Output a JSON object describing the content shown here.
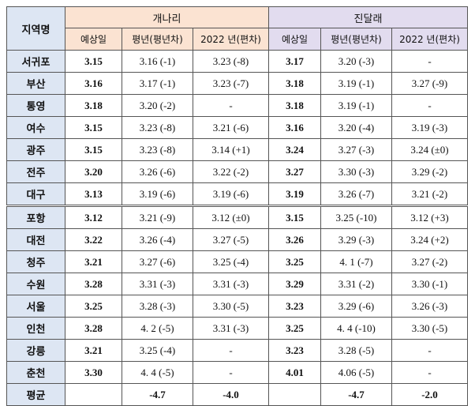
{
  "colors": {
    "region_bg": "#dde6f3",
    "forsythia_bg": "#fbe3d2",
    "azalea_bg": "#e2dcef",
    "border": "#555555"
  },
  "header": {
    "region_label": "지역명",
    "groups": [
      {
        "label": "개나리"
      },
      {
        "label": "진달래"
      }
    ],
    "subcolumns": [
      "예상일",
      "평년(평년차)",
      "2022 년(편차)",
      "예상일",
      "평년(평년차)",
      "2022 년(편차)"
    ]
  },
  "rows": [
    {
      "region": "서귀포",
      "f_pred": "3.15",
      "f_norm": "3.16 (-1)",
      "f_2022": "3.23 (-8)",
      "a_pred": "3.17",
      "a_norm": "3.20 (-3)",
      "a_2022": "-"
    },
    {
      "region": "부산",
      "f_pred": "3.16",
      "f_norm": "3.17 (-1)",
      "f_2022": "3.23 (-7)",
      "a_pred": "3.18",
      "a_norm": "3.19 (-1)",
      "a_2022": "3.27 (-9)"
    },
    {
      "region": "통영",
      "f_pred": "3.18",
      "f_norm": "3.20 (-2)",
      "f_2022": "-",
      "a_pred": "3.18",
      "a_norm": "3.19 (-1)",
      "a_2022": "-"
    },
    {
      "region": "여수",
      "f_pred": "3.15",
      "f_norm": "3.23 (-8)",
      "f_2022": "3.21 (-6)",
      "a_pred": "3.16",
      "a_norm": "3.20 (-4)",
      "a_2022": "3.19 (-3)"
    },
    {
      "region": "광주",
      "f_pred": "3.15",
      "f_norm": "3.23 (-8)",
      "f_2022": "3.14 (+1)",
      "a_pred": "3.24",
      "a_norm": "3.27 (-3)",
      "a_2022": "3.24 (±0)"
    },
    {
      "region": "전주",
      "f_pred": "3.20",
      "f_norm": "3.26 (-6)",
      "f_2022": "3.22 (-2)",
      "a_pred": "3.27",
      "a_norm": "3.30 (-3)",
      "a_2022": "3.29 (-2)"
    },
    {
      "region": "대구",
      "f_pred": "3.13",
      "f_norm": "3.19 (-6)",
      "f_2022": "3.19 (-6)",
      "a_pred": "3.19",
      "a_norm": "3.26 (-7)",
      "a_2022": "3.21 (-2)"
    },
    {
      "region": "포항",
      "f_pred": "3.12",
      "f_norm": "3.21 (-9)",
      "f_2022": "3.12 (±0)",
      "a_pred": "3.15",
      "a_norm": "3.25 (-10)",
      "a_2022": "3.12 (+3)"
    },
    {
      "region": "대전",
      "f_pred": "3.22",
      "f_norm": "3.26 (-4)",
      "f_2022": "3.27 (-5)",
      "a_pred": "3.26",
      "a_norm": "3.29 (-3)",
      "a_2022": "3.24 (+2)"
    },
    {
      "region": "청주",
      "f_pred": "3.21",
      "f_norm": "3.27 (-6)",
      "f_2022": "3.25 (-4)",
      "a_pred": "3.25",
      "a_norm": "4. 1 (-7)",
      "a_2022": "3.27 (-2)"
    },
    {
      "region": "수원",
      "f_pred": "3.28",
      "f_norm": "3.31 (-3)",
      "f_2022": "3.31 (-3)",
      "a_pred": "3.29",
      "a_norm": "3.31 (-2)",
      "a_2022": "3.30 (-1)"
    },
    {
      "region": "서울",
      "f_pred": "3.25",
      "f_norm": "3.28 (-3)",
      "f_2022": "3.30 (-5)",
      "a_pred": "3.23",
      "a_norm": "3.29 (-6)",
      "a_2022": "3.26 (-3)"
    },
    {
      "region": "인천",
      "f_pred": "3.28",
      "f_norm": "4. 2 (-5)",
      "f_2022": "3.31 (-3)",
      "a_pred": "3.25",
      "a_norm": "4. 4 (-10)",
      "a_2022": "3.30 (-5)"
    },
    {
      "region": "강릉",
      "f_pred": "3.21",
      "f_norm": "3.25 (-4)",
      "f_2022": "-",
      "a_pred": "3.23",
      "a_norm": "3.28 (-5)",
      "a_2022": "-"
    },
    {
      "region": "춘천",
      "f_pred": "3.30",
      "f_norm": "4. 4 (-5)",
      "f_2022": "-",
      "a_pred": "4.01",
      "a_norm": "4.06 (-5)",
      "a_2022": "-"
    }
  ],
  "average": {
    "label": "평균",
    "f_pred": "",
    "f_norm": "-4.7",
    "f_2022": "-4.0",
    "a_pred": "",
    "a_norm": "-4.7",
    "a_2022": "-2.0"
  }
}
